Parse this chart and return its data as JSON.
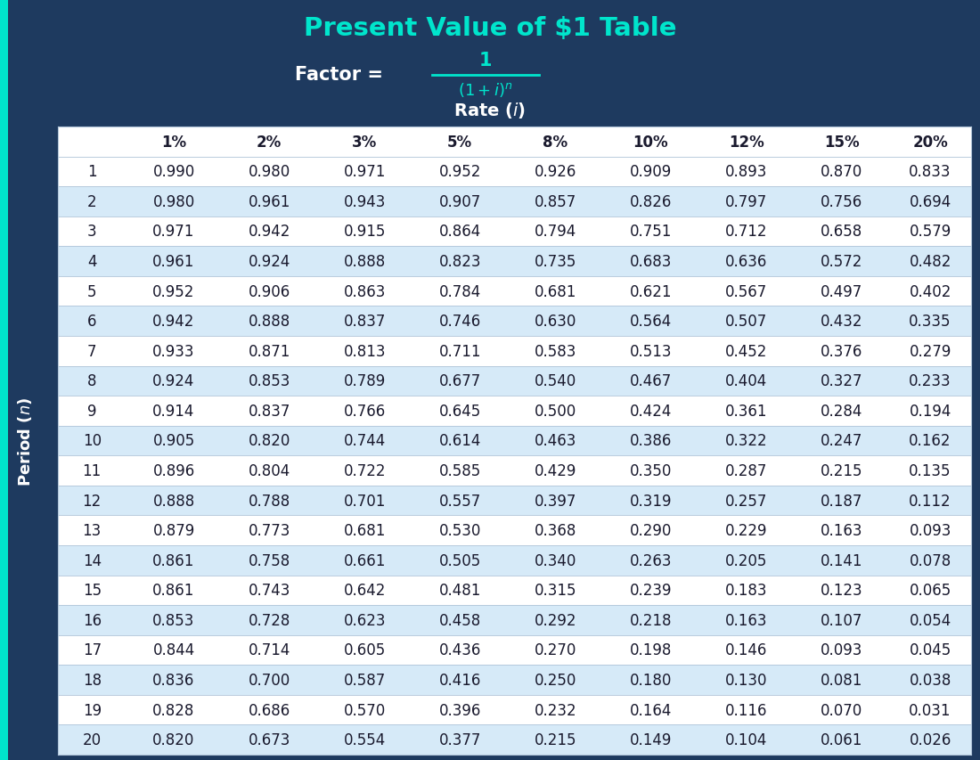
{
  "title": "Present Value of $1 Table",
  "bg_color": "#1e3a5f",
  "table_bg_light": "#d6eaf8",
  "table_bg_white": "#ffffff",
  "header_color": "#00e5cc",
  "white_color": "#ffffff",
  "dark_text": "#1a1a2e",
  "rates": [
    "1%",
    "2%",
    "3%",
    "5%",
    "8%",
    "10%",
    "12%",
    "15%",
    "20%"
  ],
  "periods": [
    1,
    2,
    3,
    4,
    5,
    6,
    7,
    8,
    9,
    10,
    11,
    12,
    13,
    14,
    15,
    16,
    17,
    18,
    19,
    20
  ],
  "values": [
    [
      0.99,
      0.98,
      0.971,
      0.952,
      0.926,
      0.909,
      0.893,
      0.87,
      0.833
    ],
    [
      0.98,
      0.961,
      0.943,
      0.907,
      0.857,
      0.826,
      0.797,
      0.756,
      0.694
    ],
    [
      0.971,
      0.942,
      0.915,
      0.864,
      0.794,
      0.751,
      0.712,
      0.658,
      0.579
    ],
    [
      0.961,
      0.924,
      0.888,
      0.823,
      0.735,
      0.683,
      0.636,
      0.572,
      0.482
    ],
    [
      0.952,
      0.906,
      0.863,
      0.784,
      0.681,
      0.621,
      0.567,
      0.497,
      0.402
    ],
    [
      0.942,
      0.888,
      0.837,
      0.746,
      0.63,
      0.564,
      0.507,
      0.432,
      0.335
    ],
    [
      0.933,
      0.871,
      0.813,
      0.711,
      0.583,
      0.513,
      0.452,
      0.376,
      0.279
    ],
    [
      0.924,
      0.853,
      0.789,
      0.677,
      0.54,
      0.467,
      0.404,
      0.327,
      0.233
    ],
    [
      0.914,
      0.837,
      0.766,
      0.645,
      0.5,
      0.424,
      0.361,
      0.284,
      0.194
    ],
    [
      0.905,
      0.82,
      0.744,
      0.614,
      0.463,
      0.386,
      0.322,
      0.247,
      0.162
    ],
    [
      0.896,
      0.804,
      0.722,
      0.585,
      0.429,
      0.35,
      0.287,
      0.215,
      0.135
    ],
    [
      0.888,
      0.788,
      0.701,
      0.557,
      0.397,
      0.319,
      0.257,
      0.187,
      0.112
    ],
    [
      0.879,
      0.773,
      0.681,
      0.53,
      0.368,
      0.29,
      0.229,
      0.163,
      0.093
    ],
    [
      0.861,
      0.758,
      0.661,
      0.505,
      0.34,
      0.263,
      0.205,
      0.141,
      0.078
    ],
    [
      0.861,
      0.743,
      0.642,
      0.481,
      0.315,
      0.239,
      0.183,
      0.123,
      0.065
    ],
    [
      0.853,
      0.728,
      0.623,
      0.458,
      0.292,
      0.218,
      0.163,
      0.107,
      0.054
    ],
    [
      0.844,
      0.714,
      0.605,
      0.436,
      0.27,
      0.198,
      0.146,
      0.093,
      0.045
    ],
    [
      0.836,
      0.7,
      0.587,
      0.416,
      0.25,
      0.18,
      0.13,
      0.081,
      0.038
    ],
    [
      0.828,
      0.686,
      0.57,
      0.396,
      0.232,
      0.164,
      0.116,
      0.07,
      0.031
    ],
    [
      0.82,
      0.673,
      0.554,
      0.377,
      0.215,
      0.149,
      0.104,
      0.061,
      0.026
    ]
  ]
}
